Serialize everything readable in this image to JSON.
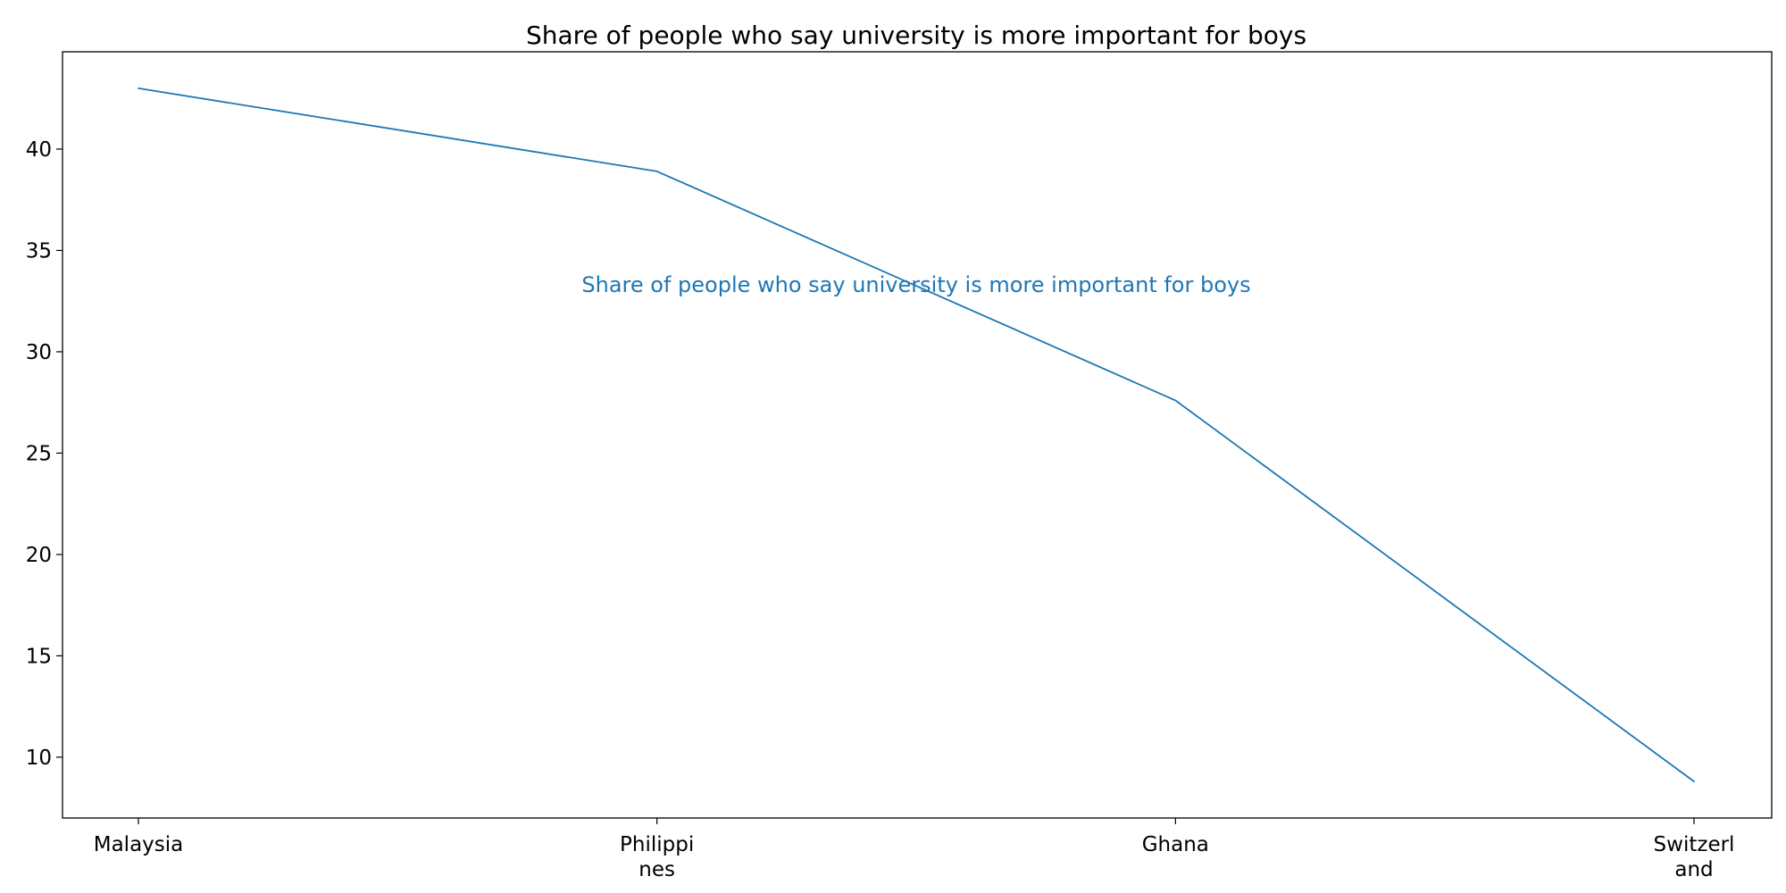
{
  "chart_data": {
    "type": "line",
    "title": "Share of people who say university is more important for boys",
    "categories": [
      "Malaysia",
      "Philippines",
      "Ghana",
      "Switzerland"
    ],
    "category_tick_lines": [
      [
        "Malaysia"
      ],
      [
        "Philippi",
        "nes"
      ],
      [
        "Ghana"
      ],
      [
        "Switzerl",
        "and"
      ]
    ],
    "series": [
      {
        "name": "Share of people who say university is more important for boys",
        "values": [
          43.0,
          38.9,
          27.6,
          8.8
        ],
        "color": "#1f77b4"
      }
    ],
    "ylim": [
      7.0,
      44.8
    ],
    "yticks": [
      10,
      15,
      20,
      25,
      30,
      35,
      40
    ],
    "xlabel": "",
    "ylabel": "",
    "grid": false,
    "legend": "none"
  }
}
